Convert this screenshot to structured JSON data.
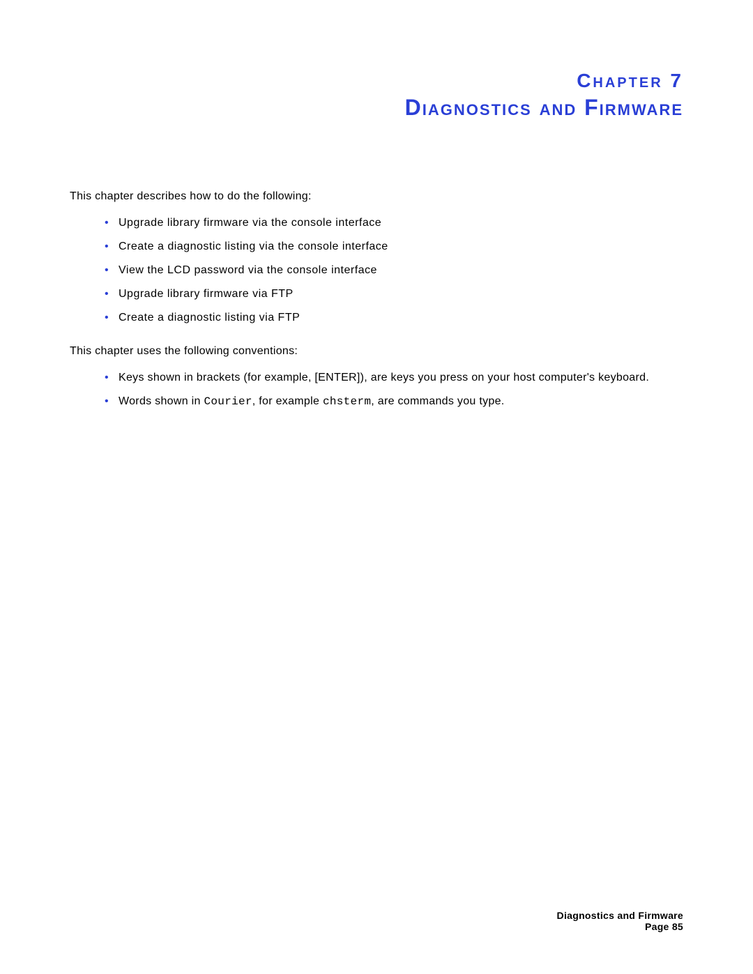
{
  "header": {
    "chapter_number": "Chapter 7",
    "chapter_title": "Diagnostics and Firmware"
  },
  "content": {
    "intro1": "This chapter describes how to do the following:",
    "list1": [
      "Upgrade library firmware via the console interface",
      "Create a diagnostic listing via the console interface",
      "View the LCD password via the console interface",
      "Upgrade library firmware via FTP",
      "Create a diagnostic listing via FTP"
    ],
    "intro2": "This chapter uses the following conventions:",
    "list2_item1": "Keys shown in brackets (for example, [ENTER]), are keys you press on your host computer's keyboard.",
    "list2_item2_part1": "Words shown in ",
    "list2_item2_courier1": "Courier",
    "list2_item2_part2": ", for example ",
    "list2_item2_courier2": "chsterm",
    "list2_item2_part3": ", are commands you type."
  },
  "footer": {
    "title": "Diagnostics and Firmware",
    "page": "Page 85"
  },
  "colors": {
    "heading": "#2a3fd6",
    "text": "#000000",
    "bullet": "#2a3fd6",
    "background": "#ffffff"
  },
  "typography": {
    "chapter_number_fontsize": 28,
    "chapter_title_fontsize": 32,
    "body_fontsize": 16,
    "footer_fontsize": 14
  }
}
